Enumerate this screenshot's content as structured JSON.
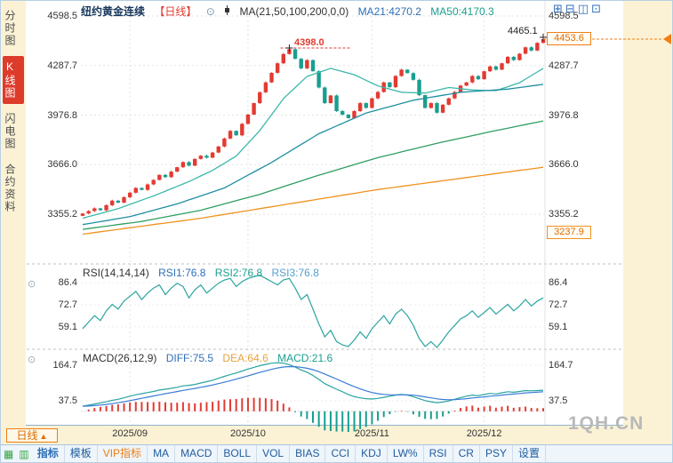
{
  "colors": {
    "up": "#e23b32",
    "down": "#1a9e8f",
    "ma21": "#3cb8ac",
    "ma50": "#1f8fa0",
    "ma100": "#2f9e63",
    "ma200": "#f0921e",
    "rsi_line": "#2aa4a0",
    "diff_line": "#2aa4a0",
    "dea_line": "#3a7bd5",
    "hist_pos": "#e23b32",
    "hist_neg": "#1a9e8f",
    "grid": "#e3e3e3"
  },
  "sidebar": {
    "items": [
      {
        "label": "分时图",
        "active": false
      },
      {
        "label": "K线图",
        "active": true
      },
      {
        "label": "闪电图",
        "active": false
      },
      {
        "label": "合约资料",
        "active": false
      }
    ]
  },
  "header": {
    "title": "纽约黄金连续",
    "period_tag": "【日线】",
    "eye_icon": "⊙",
    "ma_settings": "MA(21,50,100,200,0,0)",
    "ma21": "MA21:4270.2",
    "ma50": "MA50:4170.3"
  },
  "layout_icons": [
    {
      "name": "layout-grid-icon",
      "glyph": "⊞"
    },
    {
      "name": "layout-hsplit-icon",
      "glyph": "⊟"
    },
    {
      "name": "layout-vsplit-icon",
      "glyph": "◫"
    },
    {
      "name": "layout-single-icon",
      "glyph": "⊡"
    }
  ],
  "main_chart": {
    "axis_labels": [
      "4598.5",
      "4287.7",
      "3976.8",
      "3666.0",
      "3355.2"
    ],
    "peak_label": "4398.0",
    "high_label": "4465.1",
    "price_box": "4453.6",
    "settle_label": "3237.9"
  },
  "rsi_panel": {
    "panel_icon": "⊙",
    "title": "RSI(14,14,14)",
    "rsi1": "RSI1:76.8",
    "rsi2": "RSI2:76.8",
    "rsi3": "RSI3:76.8",
    "axis_labels": [
      "86.4",
      "72.7",
      "59.1"
    ]
  },
  "macd_panel": {
    "panel_icon": "⊙",
    "title": "MACD(26,12,9)",
    "diff": "DIFF:75.5",
    "dea": "DEA:64.6",
    "macd": "MACD:21.6",
    "axis_labels": [
      "164.7",
      "37.5"
    ]
  },
  "x_axis": [
    "2025/09",
    "2025/10",
    "2025/11",
    "2025/12"
  ],
  "footer": {
    "period_button": "日线",
    "period_arrow": "▲",
    "left_icons": [
      {
        "name": "quote-grid-icon",
        "glyph": "▦"
      },
      {
        "name": "panel-grid-icon",
        "glyph": "▥"
      }
    ],
    "tools": [
      {
        "label": "指标",
        "style": "active"
      },
      {
        "label": "模板",
        "style": ""
      },
      {
        "label": "VIP指标",
        "style": "vip"
      },
      {
        "label": "MA",
        "style": ""
      },
      {
        "label": "MACD",
        "style": ""
      },
      {
        "label": "BOLL",
        "style": ""
      },
      {
        "label": "VOL",
        "style": ""
      },
      {
        "label": "BIAS",
        "style": ""
      },
      {
        "label": "CCI",
        "style": ""
      },
      {
        "label": "KDJ",
        "style": ""
      },
      {
        "label": "LW%",
        "style": ""
      },
      {
        "label": "RSI",
        "style": ""
      },
      {
        "label": "CR",
        "style": ""
      },
      {
        "label": "PSY",
        "style": ""
      },
      {
        "label": "设置",
        "style": ""
      }
    ]
  },
  "watermark": "1QH.CN",
  "chart_data": {
    "type": "candlestick",
    "symbol": "纽约黄金连续",
    "period": "日线",
    "x_months": [
      "2025/09",
      "2025/10",
      "2025/11",
      "2025/12"
    ],
    "x_tick_indices": [
      8,
      28,
      49,
      68
    ],
    "closes": [
      3360,
      3375,
      3392,
      3380,
      3412,
      3440,
      3428,
      3462,
      3490,
      3520,
      3508,
      3542,
      3570,
      3602,
      3588,
      3622,
      3650,
      3682,
      3660,
      3702,
      3722,
      3710,
      3742,
      3780,
      3830,
      3878,
      3850,
      3922,
      3980,
      4052,
      4120,
      4182,
      4242,
      4302,
      4360,
      4390,
      4330,
      4270,
      4322,
      4252,
      4150,
      4052,
      4100,
      4002,
      3980,
      3958,
      4002,
      4052,
      4022,
      4082,
      4122,
      4182,
      4152,
      4222,
      4262,
      4240,
      4198,
      4102,
      4022,
      4052,
      3992,
      4042,
      4082,
      4122,
      4162,
      4182,
      4222,
      4202,
      4252,
      4282,
      4262,
      4302,
      4342,
      4322,
      4362,
      4402,
      4382,
      4430,
      4453.6
    ],
    "peak_index": 35,
    "peak_high": 4398.0,
    "last_high": 4465.1,
    "last_close": 4453.6,
    "ma_lines": [
      {
        "name": "MA21",
        "color_key": "ma21",
        "points": [
          [
            0,
            3330
          ],
          [
            6,
            3390
          ],
          [
            12,
            3470
          ],
          [
            18,
            3560
          ],
          [
            22,
            3630
          ],
          [
            26,
            3720
          ],
          [
            30,
            3880
          ],
          [
            34,
            4080
          ],
          [
            38,
            4220
          ],
          [
            42,
            4270
          ],
          [
            46,
            4230
          ],
          [
            50,
            4160
          ],
          [
            54,
            4120
          ],
          [
            58,
            4115
          ],
          [
            62,
            4150
          ],
          [
            66,
            4135
          ],
          [
            70,
            4130
          ],
          [
            74,
            4180
          ],
          [
            78,
            4270
          ]
        ]
      },
      {
        "name": "MA50",
        "color_key": "ma50",
        "points": [
          [
            0,
            3290
          ],
          [
            8,
            3340
          ],
          [
            16,
            3420
          ],
          [
            24,
            3520
          ],
          [
            32,
            3680
          ],
          [
            40,
            3860
          ],
          [
            48,
            3990
          ],
          [
            56,
            4070
          ],
          [
            64,
            4120
          ],
          [
            72,
            4140
          ],
          [
            78,
            4170
          ]
        ]
      },
      {
        "name": "MA100",
        "color_key": "ma100",
        "points": [
          [
            0,
            3260
          ],
          [
            10,
            3310
          ],
          [
            20,
            3380
          ],
          [
            30,
            3480
          ],
          [
            40,
            3600
          ],
          [
            50,
            3710
          ],
          [
            60,
            3800
          ],
          [
            70,
            3880
          ],
          [
            78,
            3940
          ]
        ]
      },
      {
        "name": "MA200",
        "color_key": "ma200",
        "points": [
          [
            0,
            3230
          ],
          [
            10,
            3280
          ],
          [
            20,
            3330
          ],
          [
            30,
            3390
          ],
          [
            40,
            3450
          ],
          [
            50,
            3510
          ],
          [
            60,
            3560
          ],
          [
            70,
            3610
          ],
          [
            78,
            3650
          ]
        ]
      }
    ],
    "rsi": [
      58,
      62,
      66,
      63,
      69,
      73,
      70,
      75,
      78,
      81,
      76,
      80,
      83,
      85,
      79,
      83,
      86,
      84,
      77,
      82,
      85,
      80,
      83,
      86,
      88,
      89,
      84,
      87,
      89,
      90,
      91,
      89,
      87,
      85,
      88,
      89,
      83,
      76,
      79,
      70,
      61,
      53,
      57,
      50,
      48,
      47,
      51,
      56,
      52,
      58,
      62,
      66,
      61,
      67,
      70,
      66,
      60,
      52,
      47,
      50,
      46,
      51,
      56,
      60,
      64,
      66,
      69,
      65,
      68,
      71,
      67,
      70,
      73,
      69,
      72,
      76,
      72,
      75,
      77
    ],
    "macd_diff": [
      18,
      22,
      26,
      30,
      34,
      39,
      43,
      48,
      54,
      59,
      63,
      67,
      71,
      76,
      79,
      82,
      86,
      91,
      93,
      96,
      101,
      106,
      111,
      118,
      125,
      131,
      137,
      144,
      151,
      157,
      163,
      168,
      172,
      174,
      172,
      167,
      158,
      148,
      140,
      128,
      114,
      99,
      89,
      79,
      70,
      60,
      52,
      48,
      45,
      44,
      46,
      50,
      54,
      58,
      60,
      58,
      52,
      45,
      38,
      34,
      31,
      33,
      37,
      43,
      49,
      54,
      58,
      56,
      60,
      64,
      62,
      66,
      70,
      68,
      71,
      74,
      73,
      74,
      75.5
    ]
  }
}
